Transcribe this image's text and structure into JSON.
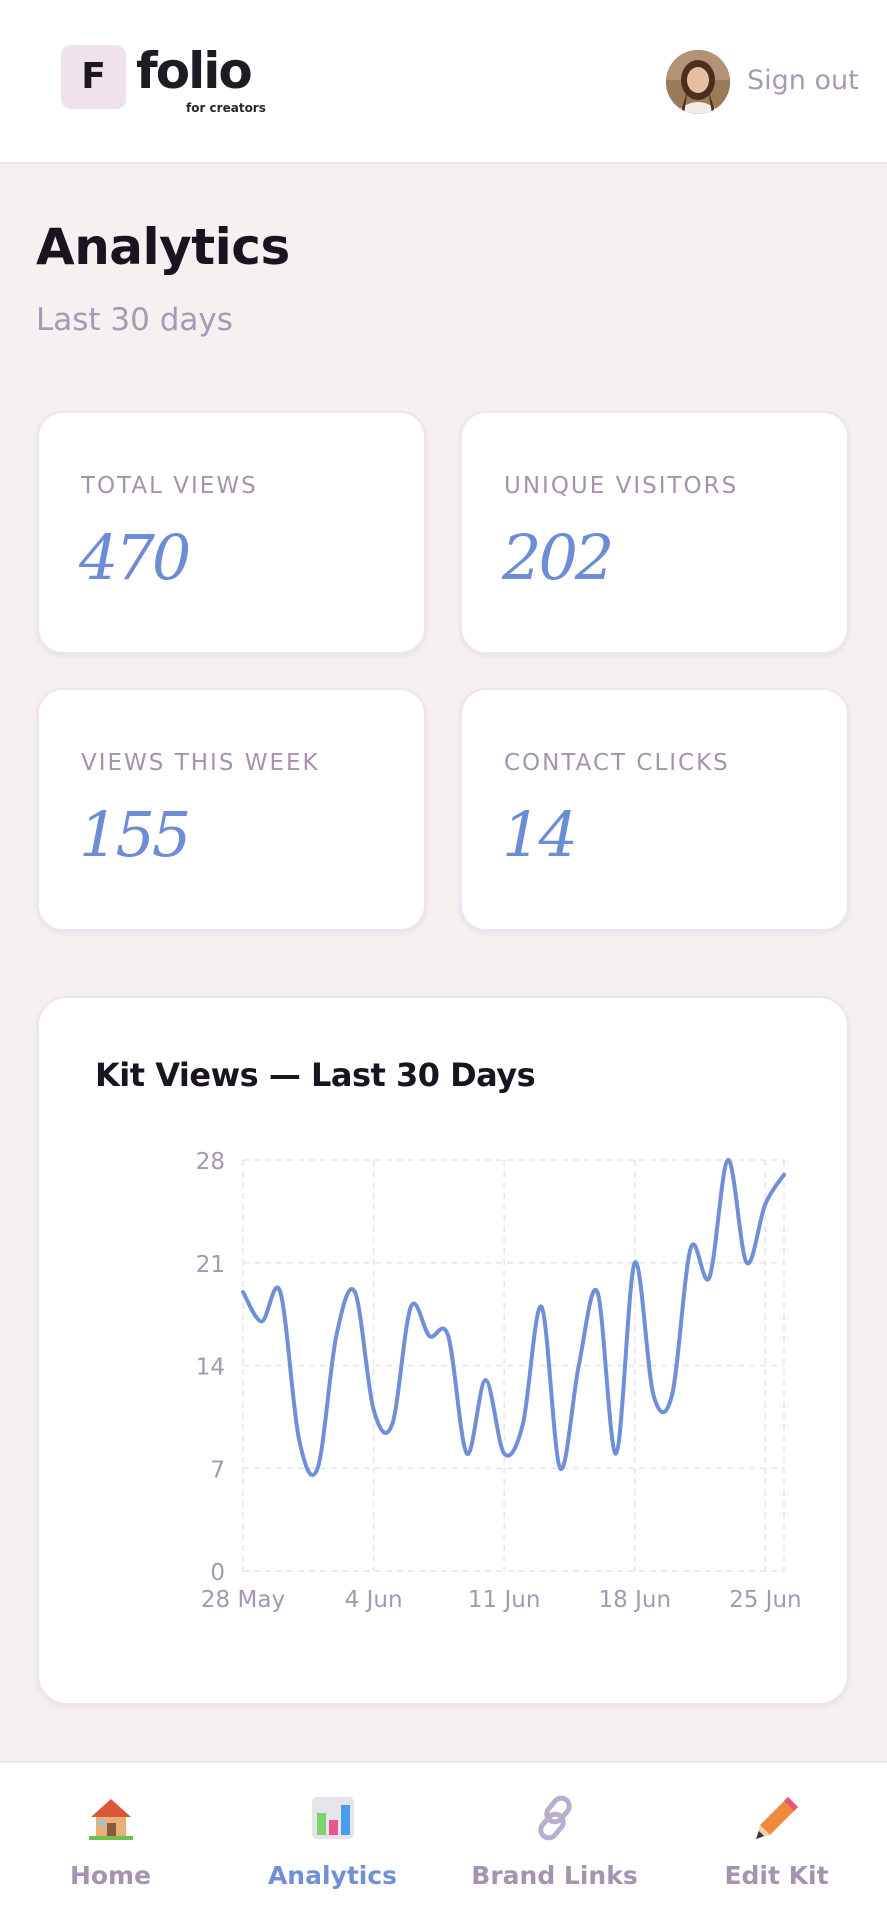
{
  "header": {
    "logo_letter": "F",
    "logo_word": "folio",
    "logo_tagline": "for creators",
    "sign_out": "Sign out"
  },
  "page": {
    "title": "Analytics",
    "subtitle": "Last 30 days"
  },
  "stats": [
    {
      "label": "TOTAL VIEWS",
      "value": "470"
    },
    {
      "label": "UNIQUE VISITORS",
      "value": "202"
    },
    {
      "label": "VIEWS THIS WEEK",
      "value": "155"
    },
    {
      "label": "CONTACT CLICKS",
      "value": "14"
    }
  ],
  "chart_title": "Kit Views — Last 30 Days",
  "chart_data": {
    "type": "line",
    "title": "Kit Views — Last 30 Days",
    "xlabel": "",
    "ylabel": "",
    "x_ticks": [
      "28 May",
      "4 Jun",
      "11 Jun",
      "18 Jun",
      "25 Jun"
    ],
    "y_ticks": [
      0,
      7,
      14,
      21,
      28
    ],
    "ylim": [
      0,
      28
    ],
    "grid": true,
    "color": "#6f8fd8",
    "x": [
      "28 May",
      "29 May",
      "30 May",
      "31 May",
      "1 Jun",
      "2 Jun",
      "3 Jun",
      "4 Jun",
      "5 Jun",
      "6 Jun",
      "7 Jun",
      "8 Jun",
      "9 Jun",
      "10 Jun",
      "11 Jun",
      "12 Jun",
      "13 Jun",
      "14 Jun",
      "15 Jun",
      "16 Jun",
      "17 Jun",
      "18 Jun",
      "19 Jun",
      "20 Jun",
      "21 Jun",
      "22 Jun",
      "23 Jun",
      "24 Jun",
      "25 Jun",
      "26 Jun"
    ],
    "values": [
      19,
      17,
      19,
      9,
      7,
      16,
      19,
      11,
      10,
      18,
      16,
      16,
      8,
      13,
      8,
      10,
      18,
      7,
      14,
      19,
      8,
      21,
      12,
      12,
      22,
      20,
      28,
      21,
      25,
      27
    ]
  },
  "nav": [
    {
      "label": "Home",
      "icon": "house-icon",
      "active": false
    },
    {
      "label": "Analytics",
      "icon": "bar-chart-icon",
      "active": true
    },
    {
      "label": "Brand Links",
      "icon": "link-icon",
      "active": false
    },
    {
      "label": "Edit Kit",
      "icon": "pencil-icon",
      "active": false
    }
  ],
  "colors": {
    "accent": "#6f8fd8",
    "background": "#f6f0f1",
    "muted_text": "#a899b4"
  }
}
